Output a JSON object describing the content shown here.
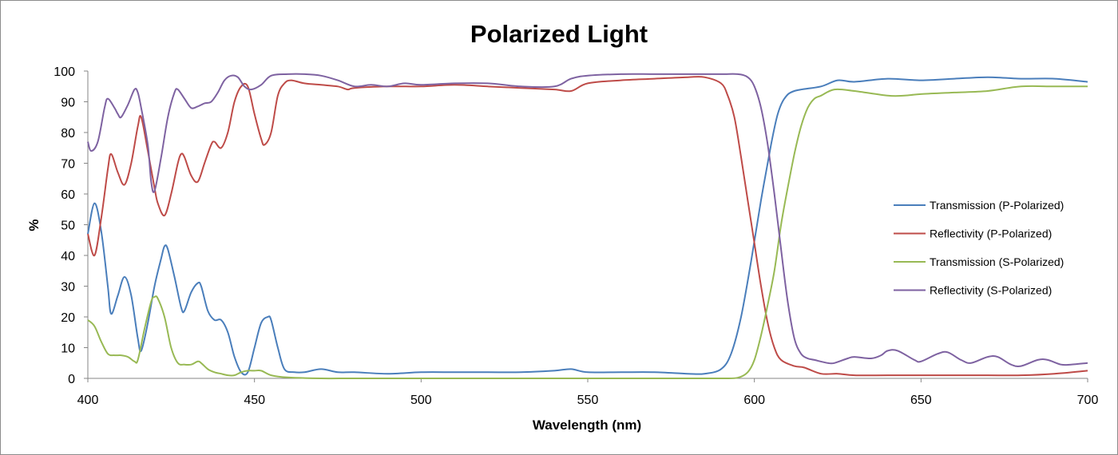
{
  "chart_data": {
    "type": "line",
    "title": "Polarized Light",
    "xlabel": "Wavelength (nm)",
    "ylabel": "%",
    "xlim": [
      400,
      700
    ],
    "ylim": [
      0,
      100
    ],
    "x_ticks": [
      400,
      450,
      500,
      550,
      600,
      650,
      700
    ],
    "y_ticks": [
      0,
      10,
      20,
      30,
      40,
      50,
      60,
      70,
      80,
      90,
      100
    ],
    "grid": false,
    "legend_position": "right",
    "series": [
      {
        "name": "Transmission (P-Polarized)",
        "color": "#4a7ebb",
        "points": [
          [
            400,
            47
          ],
          [
            402,
            57
          ],
          [
            404,
            48
          ],
          [
            406,
            30
          ],
          [
            407,
            21
          ],
          [
            409,
            27
          ],
          [
            411,
            33
          ],
          [
            413,
            27
          ],
          [
            415,
            13
          ],
          [
            416,
            9
          ],
          [
            418,
            18
          ],
          [
            420,
            30
          ],
          [
            422,
            39
          ],
          [
            423,
            43
          ],
          [
            424,
            42
          ],
          [
            426,
            33
          ],
          [
            428,
            23
          ],
          [
            429,
            22
          ],
          [
            431,
            28
          ],
          [
            433,
            31
          ],
          [
            434,
            30
          ],
          [
            436,
            22
          ],
          [
            438,
            19
          ],
          [
            440,
            19
          ],
          [
            442,
            15
          ],
          [
            444,
            7
          ],
          [
            446,
            2
          ],
          [
            448,
            2
          ],
          [
            450,
            10
          ],
          [
            452,
            18
          ],
          [
            454,
            20
          ],
          [
            455,
            19
          ],
          [
            457,
            10
          ],
          [
            459,
            3
          ],
          [
            462,
            2
          ],
          [
            465,
            2
          ],
          [
            470,
            3
          ],
          [
            475,
            2
          ],
          [
            480,
            2
          ],
          [
            490,
            1.5
          ],
          [
            500,
            2
          ],
          [
            510,
            2
          ],
          [
            520,
            2
          ],
          [
            530,
            2
          ],
          [
            540,
            2.5
          ],
          [
            545,
            3
          ],
          [
            550,
            2
          ],
          [
            560,
            2
          ],
          [
            570,
            2
          ],
          [
            580,
            1.5
          ],
          [
            585,
            1.5
          ],
          [
            590,
            3
          ],
          [
            593,
            8
          ],
          [
            596,
            20
          ],
          [
            599,
            38
          ],
          [
            602,
            58
          ],
          [
            605,
            76
          ],
          [
            607,
            86
          ],
          [
            609,
            91
          ],
          [
            612,
            93.5
          ],
          [
            620,
            95
          ],
          [
            625,
            97
          ],
          [
            630,
            96.5
          ],
          [
            640,
            97.5
          ],
          [
            650,
            97
          ],
          [
            660,
            97.5
          ],
          [
            670,
            98
          ],
          [
            680,
            97.5
          ],
          [
            690,
            97.5
          ],
          [
            700,
            96.5
          ]
        ]
      },
      {
        "name": "Reflectivity (P-Polarized)",
        "color": "#be4b48",
        "points": [
          [
            400,
            47
          ],
          [
            402,
            40
          ],
          [
            404,
            52
          ],
          [
            406,
            68
          ],
          [
            407,
            73
          ],
          [
            409,
            67
          ],
          [
            411,
            63
          ],
          [
            413,
            70
          ],
          [
            415,
            82
          ],
          [
            416,
            85
          ],
          [
            418,
            74
          ],
          [
            420,
            62
          ],
          [
            421,
            57
          ],
          [
            423,
            53
          ],
          [
            425,
            60
          ],
          [
            427,
            70
          ],
          [
            428,
            73
          ],
          [
            429,
            72
          ],
          [
            431,
            66
          ],
          [
            433,
            64
          ],
          [
            435,
            70
          ],
          [
            437,
            76
          ],
          [
            438,
            77
          ],
          [
            440,
            75
          ],
          [
            442,
            80
          ],
          [
            444,
            90
          ],
          [
            446,
            95
          ],
          [
            448,
            95
          ],
          [
            450,
            86
          ],
          [
            452,
            78
          ],
          [
            453,
            76
          ],
          [
            455,
            80
          ],
          [
            457,
            92
          ],
          [
            459,
            96
          ],
          [
            461,
            97
          ],
          [
            465,
            96
          ],
          [
            470,
            95.5
          ],
          [
            475,
            95
          ],
          [
            478,
            94
          ],
          [
            480,
            94.5
          ],
          [
            490,
            95
          ],
          [
            500,
            95
          ],
          [
            510,
            95.5
          ],
          [
            520,
            95
          ],
          [
            530,
            94.5
          ],
          [
            540,
            94
          ],
          [
            545,
            93.5
          ],
          [
            550,
            96
          ],
          [
            560,
            97
          ],
          [
            570,
            97.5
          ],
          [
            580,
            98
          ],
          [
            585,
            98
          ],
          [
            590,
            96
          ],
          [
            592,
            92
          ],
          [
            594,
            85
          ],
          [
            596,
            72
          ],
          [
            598,
            58
          ],
          [
            600,
            44
          ],
          [
            602,
            30
          ],
          [
            604,
            18
          ],
          [
            606,
            10
          ],
          [
            608,
            6
          ],
          [
            612,
            4
          ],
          [
            615,
            3.5
          ],
          [
            620,
            1.5
          ],
          [
            625,
            1.5
          ],
          [
            630,
            1
          ],
          [
            640,
            1
          ],
          [
            650,
            1
          ],
          [
            660,
            1
          ],
          [
            670,
            1
          ],
          [
            680,
            1
          ],
          [
            690,
            1.5
          ],
          [
            700,
            2.5
          ]
        ]
      },
      {
        "name": "Transmission (S-Polarized)",
        "color": "#98b954",
        "points": [
          [
            400,
            19
          ],
          [
            402,
            17
          ],
          [
            404,
            12
          ],
          [
            406,
            8
          ],
          [
            408,
            7.5
          ],
          [
            410,
            7.5
          ],
          [
            412,
            7
          ],
          [
            414,
            5.5
          ],
          [
            415,
            6
          ],
          [
            417,
            16
          ],
          [
            419,
            25
          ],
          [
            420,
            26.5
          ],
          [
            421,
            26
          ],
          [
            423,
            20
          ],
          [
            425,
            10
          ],
          [
            427,
            5
          ],
          [
            429,
            4.5
          ],
          [
            431,
            4.5
          ],
          [
            433,
            5.5
          ],
          [
            434,
            5
          ],
          [
            436,
            3
          ],
          [
            438,
            2
          ],
          [
            440,
            1.5
          ],
          [
            442,
            1
          ],
          [
            444,
            1
          ],
          [
            446,
            2
          ],
          [
            448,
            2.5
          ],
          [
            450,
            2.5
          ],
          [
            452,
            2.5
          ],
          [
            455,
            1
          ],
          [
            460,
            0.3
          ],
          [
            470,
            0
          ],
          [
            480,
            0
          ],
          [
            500,
            0
          ],
          [
            520,
            0
          ],
          [
            540,
            0
          ],
          [
            560,
            0
          ],
          [
            580,
            0
          ],
          [
            590,
            0
          ],
          [
            595,
            0.2
          ],
          [
            598,
            2
          ],
          [
            600,
            6
          ],
          [
            602,
            14
          ],
          [
            604,
            24
          ],
          [
            606,
            35
          ],
          [
            608,
            50
          ],
          [
            610,
            62
          ],
          [
            612,
            73
          ],
          [
            614,
            82
          ],
          [
            616,
            88
          ],
          [
            618,
            91
          ],
          [
            620,
            92
          ],
          [
            624,
            94
          ],
          [
            630,
            93.5
          ],
          [
            640,
            92
          ],
          [
            645,
            92
          ],
          [
            650,
            92.5
          ],
          [
            660,
            93
          ],
          [
            670,
            93.5
          ],
          [
            680,
            95
          ],
          [
            690,
            95
          ],
          [
            700,
            95
          ]
        ]
      },
      {
        "name": "Reflectivity (S-Polarized)",
        "color": "#7e62a1",
        "points": [
          [
            400,
            77
          ],
          [
            401,
            74
          ],
          [
            403,
            77
          ],
          [
            405,
            88
          ],
          [
            406,
            91
          ],
          [
            408,
            88
          ],
          [
            409,
            86
          ],
          [
            410,
            85
          ],
          [
            412,
            89
          ],
          [
            414,
            94
          ],
          [
            415,
            93
          ],
          [
            416,
            88
          ],
          [
            418,
            76
          ],
          [
            419,
            64
          ],
          [
            420,
            61
          ],
          [
            422,
            72
          ],
          [
            424,
            85
          ],
          [
            426,
            93
          ],
          [
            427,
            94
          ],
          [
            429,
            91
          ],
          [
            431,
            88
          ],
          [
            433,
            88.5
          ],
          [
            435,
            89.5
          ],
          [
            437,
            90
          ],
          [
            439,
            93
          ],
          [
            441,
            97
          ],
          [
            443,
            98.5
          ],
          [
            445,
            98
          ],
          [
            447,
            95
          ],
          [
            449,
            94
          ],
          [
            452,
            95.5
          ],
          [
            455,
            98.5
          ],
          [
            460,
            99
          ],
          [
            465,
            99
          ],
          [
            470,
            98.5
          ],
          [
            475,
            97
          ],
          [
            480,
            95
          ],
          [
            485,
            95.5
          ],
          [
            490,
            95
          ],
          [
            495,
            96
          ],
          [
            500,
            95.5
          ],
          [
            510,
            96
          ],
          [
            520,
            96
          ],
          [
            530,
            95
          ],
          [
            540,
            95
          ],
          [
            545,
            97.5
          ],
          [
            550,
            98.5
          ],
          [
            560,
            99
          ],
          [
            570,
            99
          ],
          [
            580,
            99
          ],
          [
            590,
            99
          ],
          [
            595,
            99
          ],
          [
            598,
            98
          ],
          [
            600,
            95
          ],
          [
            602,
            88
          ],
          [
            604,
            76
          ],
          [
            606,
            60
          ],
          [
            608,
            42
          ],
          [
            610,
            25
          ],
          [
            612,
            13
          ],
          [
            614,
            8
          ],
          [
            616,
            6.5
          ],
          [
            618,
            6
          ],
          [
            622,
            5
          ],
          [
            624,
            5
          ],
          [
            628,
            6.5
          ],
          [
            630,
            7
          ],
          [
            635,
            6.5
          ],
          [
            638,
            7.5
          ],
          [
            640,
            9
          ],
          [
            643,
            9
          ],
          [
            648,
            6
          ],
          [
            650,
            5.5
          ],
          [
            655,
            8
          ],
          [
            658,
            8.5
          ],
          [
            662,
            6
          ],
          [
            665,
            5
          ],
          [
            670,
            7
          ],
          [
            673,
            7
          ],
          [
            677,
            4.5
          ],
          [
            680,
            4
          ],
          [
            685,
            6
          ],
          [
            688,
            6
          ],
          [
            692,
            4.5
          ],
          [
            695,
            4.5
          ],
          [
            700,
            5
          ]
        ]
      }
    ]
  }
}
